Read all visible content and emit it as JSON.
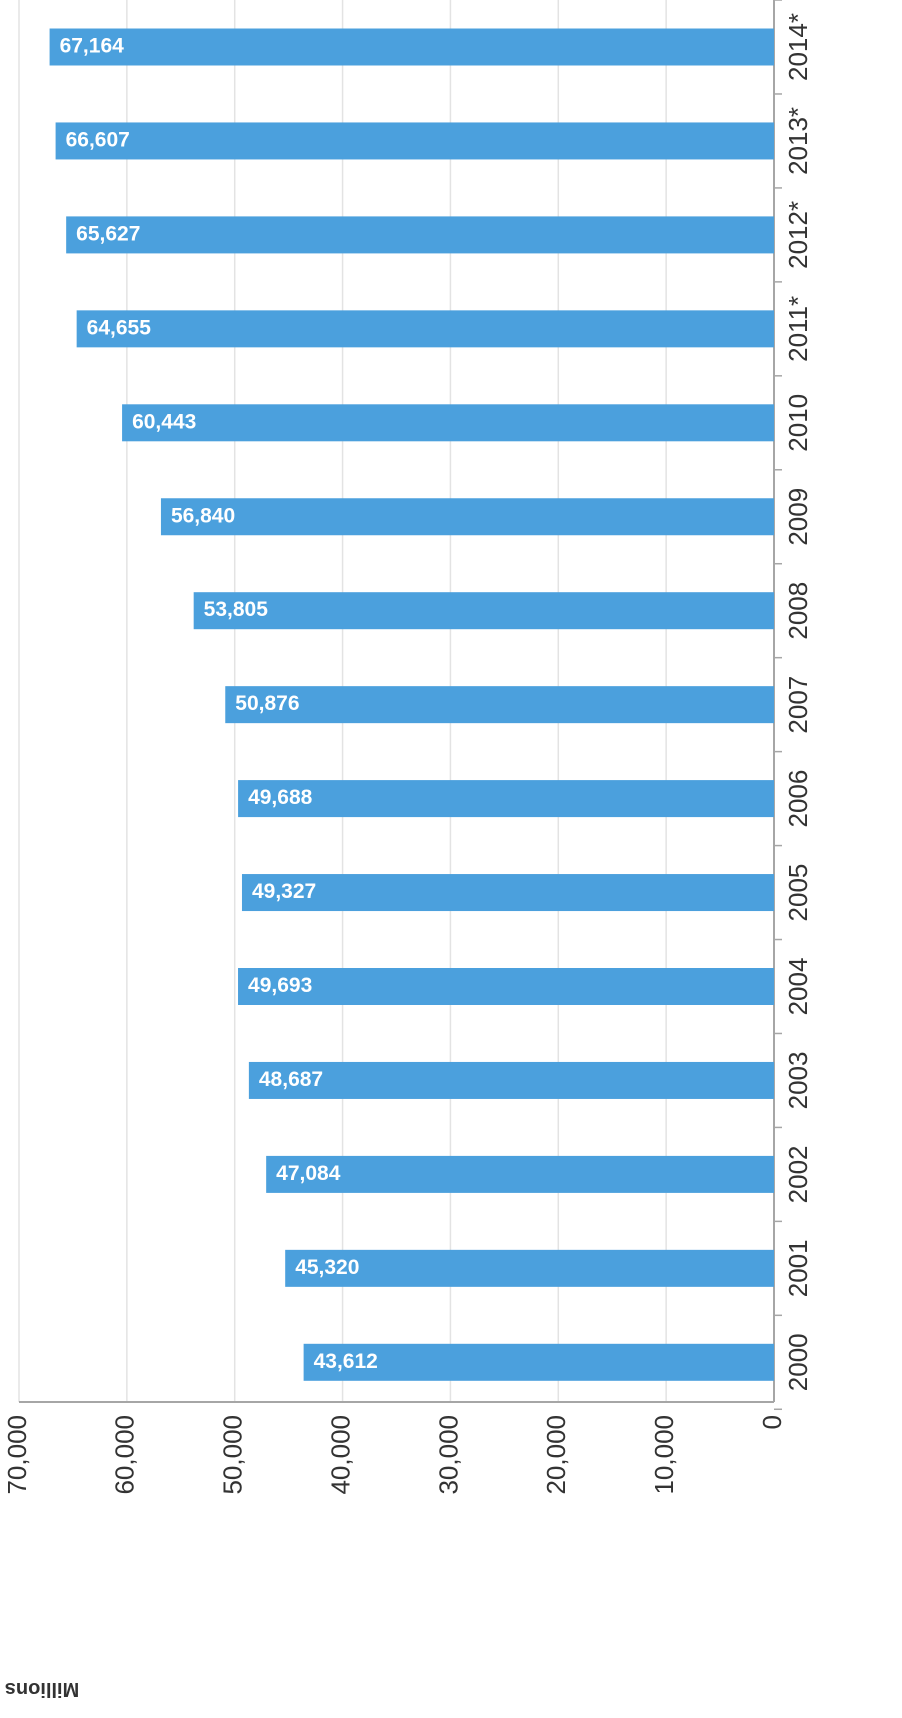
{
  "chart_data": {
    "type": "bar",
    "orientation": "horizontal",
    "categories": [
      "2000",
      "2001",
      "2002",
      "2003",
      "2004",
      "2005",
      "2006",
      "2007",
      "2008",
      "2009",
      "2010",
      "2011*",
      "2012*",
      "2013*",
      "2014*"
    ],
    "values": [
      43612,
      45320,
      47084,
      48687,
      49693,
      49327,
      49688,
      50876,
      53805,
      56840,
      60443,
      64655,
      65627,
      66607,
      67164
    ],
    "value_labels": [
      "43,612",
      "45,320",
      "47,084",
      "48,687",
      "49,693",
      "49,327",
      "49,688",
      "50,876",
      "53,805",
      "56,840",
      "60,443",
      "64,655",
      "65,627",
      "66,607",
      "67,164"
    ],
    "value_axis_ticks": [
      "0",
      "10,000",
      "20,000",
      "30,000",
      "40,000",
      "50,000",
      "60,000",
      "70,000"
    ],
    "value_axis_title": "Millions",
    "xlim": [
      0,
      70000
    ],
    "grid": true,
    "bar_color": "#4ba0dd",
    "image_rotation": "180 degrees"
  }
}
